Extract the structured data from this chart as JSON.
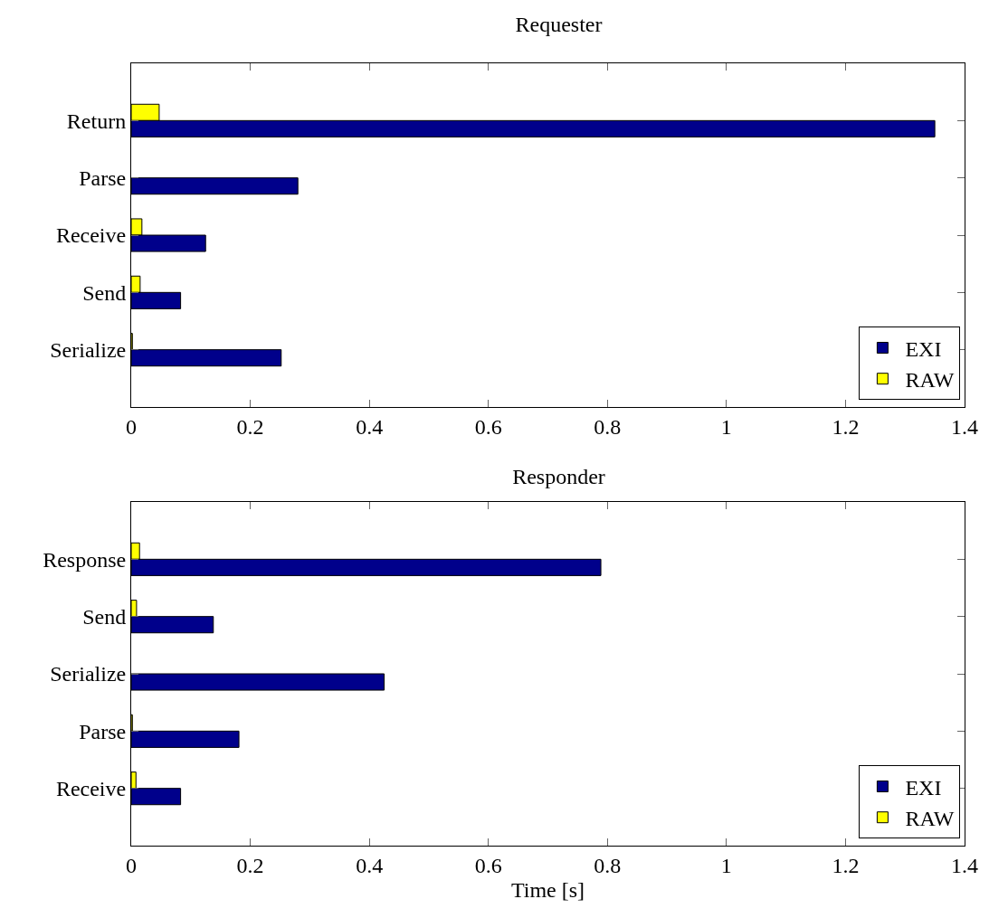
{
  "chart_data": [
    {
      "type": "bar",
      "orientation": "horizontal",
      "title": "Requester",
      "categories": [
        "Return",
        "Parse",
        "Receive",
        "Send",
        "Serialize"
      ],
      "series": [
        {
          "name": "EXI",
          "color": "#00008b",
          "values": [
            1.35,
            0.28,
            0.125,
            0.083,
            0.252
          ]
        },
        {
          "name": "RAW",
          "color": "#ffff00",
          "values": [
            0.047,
            null,
            0.018,
            0.015,
            0.002
          ]
        }
      ],
      "xlim": [
        0,
        1.4
      ],
      "xticks": [
        0,
        0.2,
        0.4,
        0.6,
        0.8,
        1,
        1.2,
        1.4
      ],
      "legend": "bottom right"
    },
    {
      "type": "bar",
      "orientation": "horizontal",
      "title": "Responder",
      "xlabel": "Time [s]",
      "categories": [
        "Response",
        "Send",
        "Serialize",
        "Parse",
        "Receive"
      ],
      "series": [
        {
          "name": "EXI",
          "color": "#00008b",
          "values": [
            0.789,
            0.138,
            0.425,
            0.181,
            0.083
          ]
        },
        {
          "name": "RAW",
          "color": "#ffff00",
          "values": [
            0.014,
            0.009,
            null,
            0.002,
            0.008
          ]
        }
      ],
      "xlim": [
        0,
        1.4
      ],
      "xticks": [
        0,
        0.2,
        0.4,
        0.6,
        0.8,
        1,
        1.2,
        1.4
      ],
      "legend": "bottom right"
    }
  ]
}
